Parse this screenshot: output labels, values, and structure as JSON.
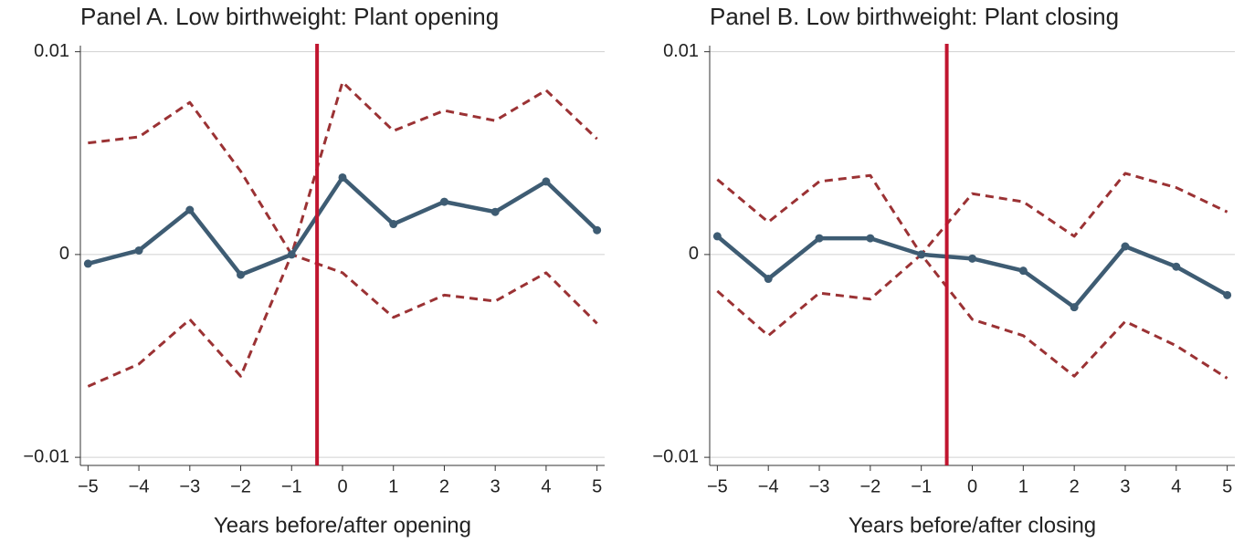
{
  "chart_data": [
    {
      "type": "line",
      "title": "Panel A. Low birthweight: Plant opening",
      "x_label": "Years before/after opening",
      "x": [
        -5,
        -4,
        -3,
        -2,
        -1,
        0,
        1,
        2,
        3,
        4,
        5
      ],
      "xlim": [
        -5.15,
        5.15
      ],
      "xticks": [
        {
          "value": -5,
          "label": "−5"
        },
        {
          "value": -4,
          "label": "−4"
        },
        {
          "value": -3,
          "label": "−3"
        },
        {
          "value": -2,
          "label": "−2"
        },
        {
          "value": -1,
          "label": "−1"
        },
        0,
        1,
        2,
        3,
        4,
        5
      ],
      "ylim": [
        -0.0104,
        0.0103
      ],
      "yticks": [
        {
          "value": -0.01,
          "label": "−0.01"
        },
        0,
        0.01
      ],
      "grid": true,
      "event_line": -0.5,
      "event_color": "#c0152f",
      "series": [
        {
          "color": "#9b3234",
          "style": "dashed",
          "values": [
            0.0055,
            0.0058,
            0.0075,
            0.0041,
            0,
            0.0085,
            0.0061,
            0.0071,
            0.0066,
            0.0081,
            0.0057
          ]
        },
        {
          "color": "#9b3234",
          "style": "dashed",
          "values": [
            -0.0065,
            -0.0054,
            -0.0032,
            -0.006,
            0,
            -0.0009,
            -0.0031,
            -0.002,
            -0.0023,
            -0.0009,
            -0.0034
          ]
        },
        {
          "color": "#3e5c73",
          "style": "solid",
          "markers": true,
          "values": [
            -0.00045,
            0.0002,
            0.0022,
            -0.001,
            0,
            0.0038,
            0.0015,
            0.0026,
            0.0021,
            0.0036,
            0.0012
          ]
        }
      ]
    },
    {
      "type": "line",
      "title": "Panel B. Low birthweight: Plant closing",
      "x_label": "Years before/after closing",
      "x": [
        -5,
        -4,
        -3,
        -2,
        -1,
        0,
        1,
        2,
        3,
        4,
        5
      ],
      "xlim": [
        -5.15,
        5.15
      ],
      "xticks": [
        {
          "value": -5,
          "label": "−5"
        },
        {
          "value": -4,
          "label": "−4"
        },
        {
          "value": -3,
          "label": "−3"
        },
        {
          "value": -2,
          "label": "−2"
        },
        {
          "value": -1,
          "label": "−1"
        },
        0,
        1,
        2,
        3,
        4,
        5
      ],
      "ylim": [
        -0.0104,
        0.0103
      ],
      "yticks": [
        {
          "value": -0.01,
          "label": "−0.01"
        },
        0,
        0.01
      ],
      "grid": true,
      "event_line": -0.5,
      "event_color": "#c0152f",
      "series": [
        {
          "color": "#9b3234",
          "style": "dashed",
          "values": [
            0.0037,
            0.0016,
            0.0036,
            0.0039,
            0,
            0.003,
            0.0026,
            0.0009,
            0.004,
            0.0033,
            0.0021
          ]
        },
        {
          "color": "#9b3234",
          "style": "dashed",
          "values": [
            -0.0018,
            -0.004,
            -0.0019,
            -0.0022,
            0,
            -0.0032,
            -0.004,
            -0.006,
            -0.0033,
            -0.0045,
            -0.0061
          ]
        },
        {
          "color": "#3e5c73",
          "style": "solid",
          "markers": true,
          "values": [
            0.0009,
            -0.0012,
            0.0008,
            0.0008,
            0,
            -0.0002,
            -0.0008,
            -0.0026,
            0.0004,
            -0.0006,
            -0.002
          ]
        }
      ]
    }
  ]
}
